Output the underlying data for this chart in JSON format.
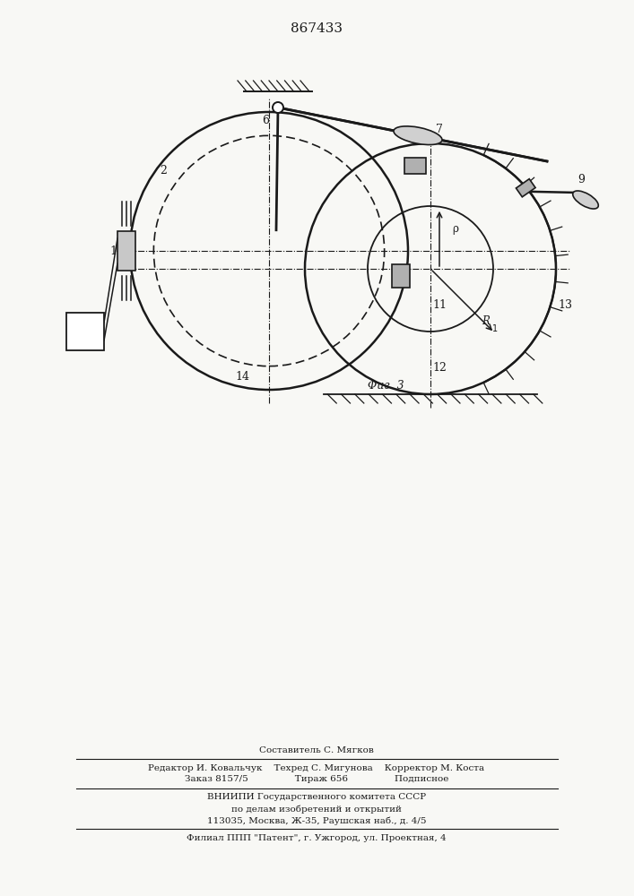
{
  "title": "867433",
  "fig_label": "Φиг. 3",
  "bg": "#f8f8f5",
  "lc": "#1a1a1a",
  "footer_lines": [
    "Составитель С. Мягков",
    "Редактор И. Ковальчук    Техред С. Мигунова    Корректор М. Коста",
    "Заказ 8157/5                Тираж 656                Подписное",
    "ВНИИПИ Государственного комитета СССР",
    "по делам изобретений и открытий",
    "113035, Москва, Ж-35, Раушская наб., д. 4/5",
    "Филиал ППП \"Патент\", г. Ужгород, ул. Проектная, 4"
  ]
}
